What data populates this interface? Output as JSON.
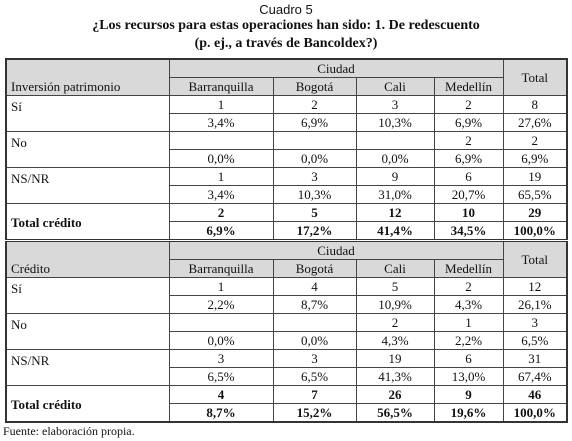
{
  "caption": "Cuadro 5",
  "title": [
    "¿Los recursos para estas operaciones han sido: 1. De redescuento",
    "(p. ej., a través de Bancoldex?)"
  ],
  "sections": [
    {
      "label_header": "Inversión patrimonio",
      "group_header": "Ciudad",
      "columns": [
        "Barranquilla",
        "Bogotá",
        "Cali",
        "Medellín"
      ],
      "total_header": "Total",
      "rows": [
        {
          "label": "Sí",
          "counts": [
            1,
            2,
            3,
            2,
            8
          ],
          "percents": [
            "3,4%",
            "6,9%",
            "10,3%",
            "6,9%",
            "27,6%"
          ]
        },
        {
          "label": "No",
          "counts": [
            null,
            null,
            null,
            2,
            2
          ],
          "percents": [
            "0,0%",
            "0,0%",
            "0,0%",
            "6,9%",
            "6,9%"
          ]
        },
        {
          "label": "NS/NR",
          "counts": [
            1,
            3,
            9,
            6,
            19
          ],
          "percents": [
            "3,4%",
            "10,3%",
            "31,0%",
            "20,7%",
            "65,5%"
          ]
        },
        {
          "label": "Total crédito",
          "counts": [
            2,
            5,
            12,
            10,
            29
          ],
          "percents": [
            "6,9%",
            "17,2%",
            "41,4%",
            "34,5%",
            "100,0%"
          ]
        }
      ]
    },
    {
      "label_header": "Crédito",
      "group_header": "Ciudad",
      "columns": [
        "Barranquilla",
        "Bogotá",
        "Cali",
        "Medellín"
      ],
      "total_header": "Total",
      "rows": [
        {
          "label": "Sí",
          "counts": [
            1,
            4,
            5,
            2,
            12
          ],
          "percents": [
            "2,2%",
            "8,7%",
            "10,9%",
            "4,3%",
            "26,1%"
          ]
        },
        {
          "label": "No",
          "counts": [
            null,
            null,
            2,
            1,
            3
          ],
          "percents": [
            "0,0%",
            "0,0%",
            "4,3%",
            "2,2%",
            "6,5%"
          ]
        },
        {
          "label": "NS/NR",
          "counts": [
            3,
            3,
            19,
            6,
            31
          ],
          "percents": [
            "6,5%",
            "6,5%",
            "41,3%",
            "13,0%",
            "67,4%"
          ]
        },
        {
          "label": "Total crédito",
          "counts": [
            4,
            7,
            26,
            9,
            46
          ],
          "percents": [
            "8,7%",
            "15,2%",
            "56,5%",
            "19,6%",
            "100,0%"
          ]
        }
      ]
    }
  ],
  "source": "Fuente: elaboración propia."
}
